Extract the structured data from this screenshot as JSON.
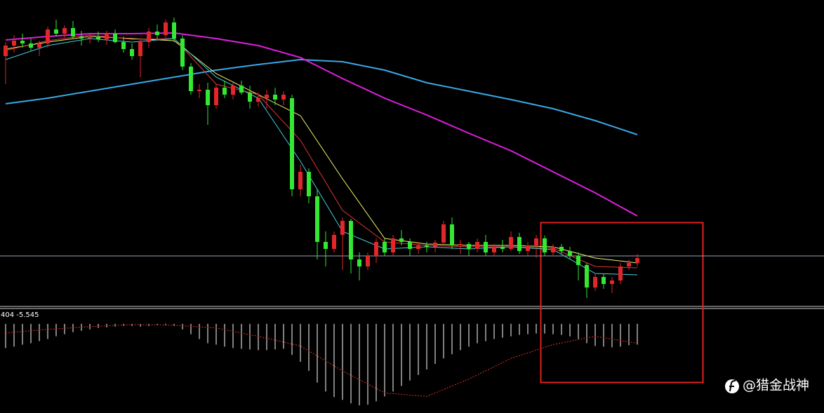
{
  "chart_data": [
    {
      "type": "candlestick",
      "ylim": [
        0,
        440
      ],
      "up_color": "#e3262a",
      "down_color": "#33e833",
      "price_line": 75,
      "price_line_color": "#9aa4b0",
      "candles": [
        [
          360,
          380,
          320,
          375
        ],
        [
          375,
          390,
          365,
          382
        ],
        [
          382,
          392,
          372,
          378
        ],
        [
          378,
          385,
          368,
          372
        ],
        [
          372,
          382,
          360,
          378
        ],
        [
          378,
          402,
          372,
          398
        ],
        [
          398,
          412,
          388,
          392
        ],
        [
          392,
          404,
          386,
          400
        ],
        [
          400,
          410,
          385,
          388
        ],
        [
          388,
          396,
          375,
          385
        ],
        [
          385,
          392,
          378,
          388
        ],
        [
          388,
          395,
          380,
          384
        ],
        [
          384,
          396,
          376,
          392
        ],
        [
          392,
          398,
          378,
          380
        ],
        [
          380,
          388,
          365,
          370
        ],
        [
          370,
          378,
          355,
          360
        ],
        [
          360,
          385,
          330,
          380
        ],
        [
          380,
          400,
          372,
          395
        ],
        [
          395,
          405,
          385,
          390
        ],
        [
          390,
          412,
          386,
          408
        ],
        [
          408,
          415,
          380,
          385
        ],
        [
          385,
          390,
          340,
          345
        ],
        [
          345,
          350,
          305,
          310
        ],
        [
          310,
          320,
          300,
          312
        ],
        [
          312,
          322,
          262,
          290
        ],
        [
          290,
          320,
          285,
          315
        ],
        [
          315,
          325,
          300,
          305
        ],
        [
          305,
          322,
          298,
          318
        ],
        [
          318,
          325,
          305,
          308
        ],
        [
          308,
          318,
          285,
          295
        ],
        [
          295,
          308,
          288,
          300
        ],
        [
          300,
          312,
          285,
          305
        ],
        [
          305,
          315,
          290,
          298
        ],
        [
          298,
          310,
          290,
          305
        ],
        [
          300,
          305,
          160,
          170
        ],
        [
          170,
          205,
          160,
          195
        ],
        [
          195,
          200,
          150,
          160
        ],
        [
          160,
          170,
          70,
          95
        ],
        [
          95,
          110,
          60,
          85
        ],
        [
          85,
          110,
          80,
          105
        ],
        [
          105,
          130,
          55,
          125
        ],
        [
          125,
          128,
          50,
          70
        ],
        [
          70,
          80,
          40,
          60
        ],
        [
          60,
          80,
          55,
          75
        ],
        [
          75,
          100,
          65,
          95
        ],
        [
          95,
          100,
          75,
          80
        ],
        [
          80,
          105,
          75,
          100
        ],
        [
          100,
          112,
          90,
          95
        ],
        [
          95,
          100,
          75,
          85
        ],
        [
          85,
          95,
          78,
          90
        ],
        [
          90,
          95,
          80,
          88
        ],
        [
          88,
          98,
          80,
          94
        ],
        [
          94,
          125,
          90,
          120
        ],
        [
          120,
          130,
          85,
          90
        ],
        [
          90,
          98,
          78,
          92
        ],
        [
          92,
          95,
          75,
          85
        ],
        [
          85,
          100,
          80,
          95
        ],
        [
          95,
          105,
          75,
          80
        ],
        [
          80,
          92,
          75,
          88
        ],
        [
          88,
          98,
          80,
          85
        ],
        [
          85,
          110,
          82,
          102
        ],
        [
          102,
          108,
          78,
          82
        ],
        [
          82,
          95,
          75,
          90
        ],
        [
          90,
          105,
          72,
          100
        ],
        [
          100,
          104,
          75,
          80
        ],
        [
          80,
          92,
          76,
          88
        ],
        [
          88,
          92,
          78,
          82
        ],
        [
          82,
          88,
          70,
          75
        ],
        [
          75,
          80,
          40,
          62
        ],
        [
          62,
          65,
          15,
          30
        ],
        [
          30,
          50,
          25,
          45
        ],
        [
          45,
          50,
          28,
          35
        ],
        [
          35,
          45,
          22,
          40
        ],
        [
          40,
          65,
          35,
          60
        ],
        [
          60,
          70,
          55,
          65
        ],
        [
          65,
          78,
          60,
          72
        ]
      ],
      "line_x": [
        0,
        5,
        10,
        15,
        20,
        25,
        30,
        35,
        40,
        45,
        50,
        55,
        60,
        65,
        70,
        75
      ],
      "series": [
        {
          "color": "#3aa8e6",
          "width": 2,
          "values": [
            292,
            300,
            310,
            320,
            330,
            340,
            348,
            355,
            352,
            340,
            322,
            310,
            298,
            285,
            268,
            248
          ]
        },
        {
          "color": "#e01ee0",
          "width": 2,
          "values": [
            383,
            388,
            392,
            392,
            393,
            385,
            375,
            358,
            328,
            300,
            276,
            250,
            225,
            195,
            165,
            132
          ]
        },
        {
          "color": "#f2f26a",
          "width": 1,
          "values": [
            370,
            380,
            388,
            385,
            382,
            335,
            305,
            275,
            185,
            100,
            92,
            90,
            90,
            88,
            72,
            65
          ]
        },
        {
          "color": "#e03434",
          "width": 1,
          "values": [
            368,
            382,
            390,
            384,
            385,
            320,
            305,
            240,
            140,
            95,
            90,
            88,
            88,
            86,
            60,
            58
          ]
        },
        {
          "color": "#40d0e0",
          "width": 1,
          "values": [
            355,
            375,
            385,
            380,
            385,
            330,
            300,
            210,
            110,
            85,
            88,
            85,
            88,
            84,
            50,
            48
          ]
        }
      ]
    },
    {
      "type": "macd",
      "label": "404 -5.545",
      "ylim": [
        -125,
        7
      ],
      "hist_color": "#ffffff",
      "signal_color": "#e03030",
      "values": [
        -35,
        -33,
        -30,
        -28,
        -25,
        -22,
        -18,
        -15,
        -12,
        -10,
        -8,
        -6,
        -5,
        -4,
        -3,
        -3,
        -4,
        -3,
        -2,
        -2,
        -3,
        -8,
        -15,
        -22,
        -28,
        -30,
        -33,
        -35,
        -36,
        -37,
        -38,
        -38,
        -37,
        -36,
        -45,
        -55,
        -68,
        -85,
        -98,
        -106,
        -110,
        -115,
        -118,
        -117,
        -112,
        -105,
        -98,
        -90,
        -82,
        -74,
        -66,
        -58,
        -50,
        -44,
        -38,
        -33,
        -28,
        -25,
        -22,
        -20,
        -18,
        -16,
        -15,
        -14,
        -14,
        -15,
        -16,
        -18,
        -22,
        -28,
        -32,
        -33,
        -34,
        -33,
        -31,
        -30
      ],
      "signal_x": [
        0,
        5,
        10,
        15,
        20,
        25,
        30,
        35,
        40,
        45,
        50,
        55,
        60,
        65,
        70,
        75
      ],
      "signal": [
        -13,
        -8,
        -4,
        -1,
        -2,
        -6,
        -18,
        -32,
        -68,
        -100,
        -105,
        -80,
        -50,
        -30,
        -18,
        -28
      ]
    }
  ],
  "watermark": "@猎金战神"
}
